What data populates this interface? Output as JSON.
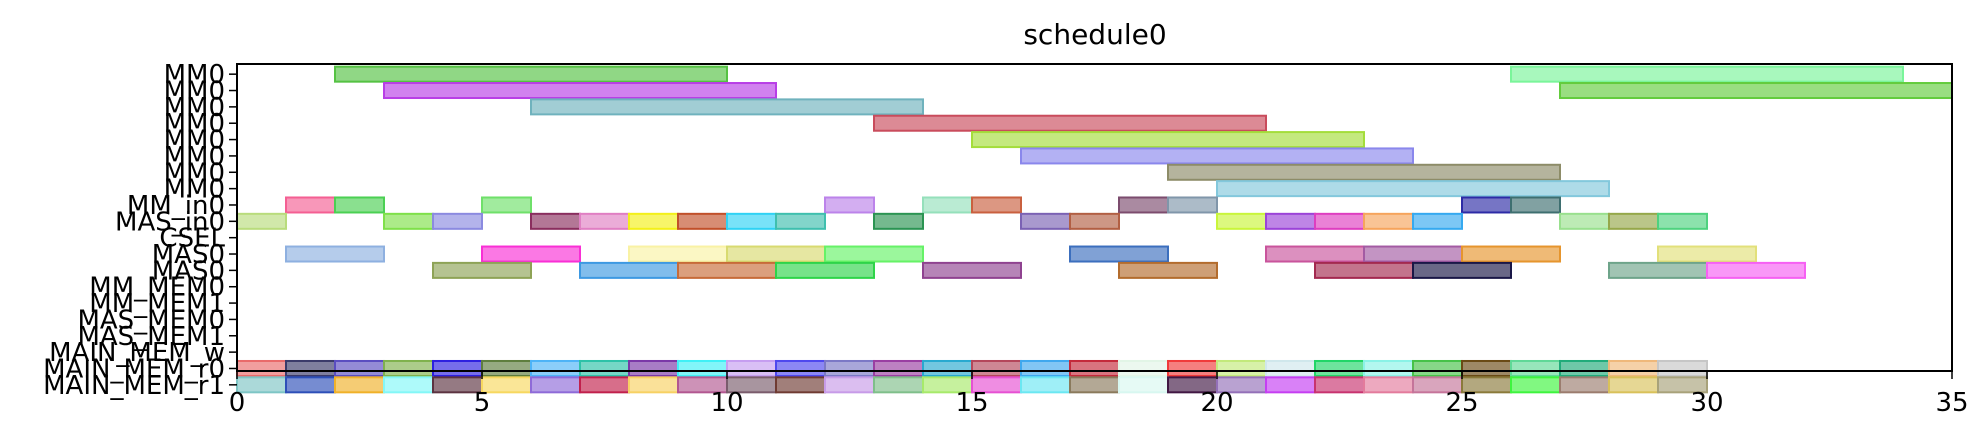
{
  "chart_data": {
    "type": "gantt",
    "title": "schedule0",
    "xlabel": "",
    "ylabel": "",
    "xlim": [
      0,
      35
    ],
    "xticks": [
      0,
      5,
      10,
      15,
      20,
      25,
      30,
      35
    ],
    "grid": false,
    "rows": [
      "MM0",
      "MM0",
      "MM0",
      "MM0",
      "MM0",
      "MM0",
      "MM0",
      "MM0",
      "MM_in0",
      "MAS_in0",
      "CSEL",
      "MAS0",
      "MAS0",
      "MM_MEM0",
      "MM_MEM1",
      "MAS_MEM0",
      "MAS_MEM1",
      "MAIN_MEM_w",
      "MAIN_MEM_r0",
      "MAIN_MEM_r1"
    ],
    "bars": [
      {
        "row": 0,
        "start": 2,
        "end": 10,
        "color": "#55c243"
      },
      {
        "row": 0,
        "start": 26,
        "end": 34,
        "color": "#7af59a"
      },
      {
        "row": 1,
        "start": 3,
        "end": 11,
        "color": "#b83ee6"
      },
      {
        "row": 1,
        "start": 27,
        "end": 35,
        "color": "#63cc3d"
      },
      {
        "row": 2,
        "start": 6,
        "end": 14,
        "color": "#6fb2bd"
      },
      {
        "row": 3,
        "start": 13,
        "end": 21,
        "color": "#c94c5c"
      },
      {
        "row": 4,
        "start": 15,
        "end": 23,
        "color": "#a4dd3b"
      },
      {
        "row": 5,
        "start": 16,
        "end": 24,
        "color": "#8a87ec"
      },
      {
        "row": 6,
        "start": 19,
        "end": 27,
        "color": "#8d8c68"
      },
      {
        "row": 7,
        "start": 20,
        "end": 28,
        "color": "#83c8dc"
      },
      {
        "row": 8,
        "start": 1,
        "end": 2,
        "color": "#f45f93"
      },
      {
        "row": 8,
        "start": 2,
        "end": 3,
        "color": "#4bd053"
      },
      {
        "row": 8,
        "start": 5,
        "end": 6,
        "color": "#6fe06a"
      },
      {
        "row": 8,
        "start": 12,
        "end": 13,
        "color": "#bc83ea"
      },
      {
        "row": 8,
        "start": 14,
        "end": 15,
        "color": "#95e0bb"
      },
      {
        "row": 8,
        "start": 15,
        "end": 16,
        "color": "#c9603f"
      },
      {
        "row": 8,
        "start": 18,
        "end": 19,
        "color": "#7c4c6e"
      },
      {
        "row": 8,
        "start": 19,
        "end": 20,
        "color": "#8096aa"
      },
      {
        "row": 8,
        "start": 25,
        "end": 26,
        "color": "#2d2ba6"
      },
      {
        "row": 8,
        "start": 26,
        "end": 27,
        "color": "#3e6f70"
      },
      {
        "row": 9,
        "start": 0,
        "end": 1,
        "color": "#b9dc7c"
      },
      {
        "row": 9,
        "start": 3,
        "end": 4,
        "color": "#7fe04a"
      },
      {
        "row": 9,
        "start": 4,
        "end": 5,
        "color": "#8b8ae0"
      },
      {
        "row": 9,
        "start": 6,
        "end": 7,
        "color": "#8a2e5e"
      },
      {
        "row": 9,
        "start": 7,
        "end": 8,
        "color": "#e07fc3"
      },
      {
        "row": 9,
        "start": 8,
        "end": 9,
        "color": "#f3f019"
      },
      {
        "row": 9,
        "start": 9,
        "end": 10,
        "color": "#c1502a"
      },
      {
        "row": 9,
        "start": 10,
        "end": 11,
        "color": "#2fd2f4"
      },
      {
        "row": 9,
        "start": 11,
        "end": 12,
        "color": "#3fbfae"
      },
      {
        "row": 9,
        "start": 13,
        "end": 14,
        "color": "#2b9452"
      },
      {
        "row": 9,
        "start": 16,
        "end": 17,
        "color": "#7b62b4"
      },
      {
        "row": 9,
        "start": 17,
        "end": 18,
        "color": "#b25f43"
      },
      {
        "row": 9,
        "start": 20,
        "end": 21,
        "color": "#c9f53a"
      },
      {
        "row": 9,
        "start": 21,
        "end": 22,
        "color": "#9b43d8"
      },
      {
        "row": 9,
        "start": 22,
        "end": 23,
        "color": "#de3ec0"
      },
      {
        "row": 9,
        "start": 23,
        "end": 24,
        "color": "#f6a45c"
      },
      {
        "row": 9,
        "start": 24,
        "end": 25,
        "color": "#35a9f0"
      },
      {
        "row": 9,
        "start": 27,
        "end": 28,
        "color": "#99e08e"
      },
      {
        "row": 9,
        "start": 28,
        "end": 29,
        "color": "#95a84a"
      },
      {
        "row": 9,
        "start": 29,
        "end": 30,
        "color": "#4fd27f"
      },
      {
        "row": 11,
        "start": 1,
        "end": 3,
        "color": "#8eb0e0"
      },
      {
        "row": 11,
        "start": 5,
        "end": 7,
        "color": "#f92fd5"
      },
      {
        "row": 11,
        "start": 8,
        "end": 10,
        "color": "#f9f2a4"
      },
      {
        "row": 11,
        "start": 10,
        "end": 12,
        "color": "#d8da70"
      },
      {
        "row": 11,
        "start": 12,
        "end": 14,
        "color": "#66f267"
      },
      {
        "row": 11,
        "start": 17,
        "end": 19,
        "color": "#3c6fbe"
      },
      {
        "row": 11,
        "start": 21,
        "end": 23,
        "color": "#c9549c"
      },
      {
        "row": 11,
        "start": 23,
        "end": 25,
        "color": "#a35ba3"
      },
      {
        "row": 11,
        "start": 25,
        "end": 27,
        "color": "#e6952d"
      },
      {
        "row": 11,
        "start": 29,
        "end": 31,
        "color": "#e2e07a"
      },
      {
        "row": 12,
        "start": 4,
        "end": 6,
        "color": "#8ea356"
      },
      {
        "row": 12,
        "start": 7,
        "end": 9,
        "color": "#3d99e2"
      },
      {
        "row": 12,
        "start": 9,
        "end": 11,
        "color": "#c76b38"
      },
      {
        "row": 12,
        "start": 11,
        "end": 13,
        "color": "#2ed449"
      },
      {
        "row": 12,
        "start": 14,
        "end": 16,
        "color": "#8f4290"
      },
      {
        "row": 12,
        "start": 18,
        "end": 20,
        "color": "#b36c2d"
      },
      {
        "row": 12,
        "start": 22,
        "end": 24,
        "color": "#a3294f"
      },
      {
        "row": 12,
        "start": 24,
        "end": 26,
        "color": "#1a1747"
      },
      {
        "row": 12,
        "start": 28,
        "end": 30,
        "color": "#6ea48a"
      },
      {
        "row": 12,
        "start": 30,
        "end": 32,
        "color": "#f660f3"
      },
      {
        "row": 18,
        "start": 0,
        "end": 1,
        "color": "#e96a6a"
      },
      {
        "row": 18,
        "start": 1,
        "end": 2,
        "color": "#3a3a6a"
      },
      {
        "row": 18,
        "start": 2,
        "end": 3,
        "color": "#5a4dc0"
      },
      {
        "row": 18,
        "start": 3,
        "end": 4,
        "color": "#7fb14c"
      },
      {
        "row": 18,
        "start": 4,
        "end": 5,
        "color": "#2c1fe0"
      },
      {
        "row": 18,
        "start": 5,
        "end": 6,
        "color": "#5e7d3d"
      },
      {
        "row": 18,
        "start": 6,
        "end": 7,
        "color": "#4db3f7"
      },
      {
        "row": 18,
        "start": 7,
        "end": 8,
        "color": "#2dc2a8"
      },
      {
        "row": 18,
        "start": 8,
        "end": 9,
        "color": "#7a38a8"
      },
      {
        "row": 18,
        "start": 9,
        "end": 10,
        "color": "#3ff0f6"
      },
      {
        "row": 18,
        "start": 10,
        "end": 11,
        "color": "#c59df0"
      },
      {
        "row": 18,
        "start": 11,
        "end": 12,
        "color": "#4e47ee"
      },
      {
        "row": 18,
        "start": 12,
        "end": 13,
        "color": "#7b78c6"
      },
      {
        "row": 18,
        "start": 13,
        "end": 14,
        "color": "#9a3ea2"
      },
      {
        "row": 18,
        "start": 14,
        "end": 15,
        "color": "#27a9d0"
      },
      {
        "row": 18,
        "start": 15,
        "end": 16,
        "color": "#b4465a"
      },
      {
        "row": 18,
        "start": 16,
        "end": 17,
        "color": "#3fa8ee"
      },
      {
        "row": 18,
        "start": 17,
        "end": 18,
        "color": "#c42a3b"
      },
      {
        "row": 18,
        "start": 18,
        "end": 19,
        "color": "#e2f5e6"
      },
      {
        "row": 18,
        "start": 19,
        "end": 20,
        "color": "#f03a3a"
      },
      {
        "row": 18,
        "start": 20,
        "end": 21,
        "color": "#c2e97a"
      },
      {
        "row": 18,
        "start": 21,
        "end": 22,
        "color": "#d0e7ec"
      },
      {
        "row": 18,
        "start": 22,
        "end": 23,
        "color": "#21d668"
      },
      {
        "row": 18,
        "start": 23,
        "end": 24,
        "color": "#8af2e6"
      },
      {
        "row": 18,
        "start": 24,
        "end": 25,
        "color": "#46c248"
      },
      {
        "row": 18,
        "start": 25,
        "end": 26,
        "color": "#6a4a14"
      },
      {
        "row": 18,
        "start": 26,
        "end": 27,
        "color": "#5fd897"
      },
      {
        "row": 18,
        "start": 27,
        "end": 28,
        "color": "#20ab7a"
      },
      {
        "row": 18,
        "start": 28,
        "end": 29,
        "color": "#efb87a"
      },
      {
        "row": 18,
        "start": 29,
        "end": 30,
        "color": "#c6c6c6"
      },
      {
        "row": 19,
        "start": 0,
        "end": 1,
        "color": "#7ec5c5"
      },
      {
        "row": 19,
        "start": 1,
        "end": 2,
        "color": "#2d4fb8"
      },
      {
        "row": 19,
        "start": 2,
        "end": 3,
        "color": "#f0b129"
      },
      {
        "row": 19,
        "start": 3,
        "end": 4,
        "color": "#83f7f7"
      },
      {
        "row": 19,
        "start": 4,
        "end": 5,
        "color": "#5c3341"
      },
      {
        "row": 19,
        "start": 5,
        "end": 6,
        "color": "#f7d85f"
      },
      {
        "row": 19,
        "start": 6,
        "end": 7,
        "color": "#8e6ad8"
      },
      {
        "row": 19,
        "start": 7,
        "end": 8,
        "color": "#c1204c"
      },
      {
        "row": 19,
        "start": 8,
        "end": 9,
        "color": "#f7d163"
      },
      {
        "row": 19,
        "start": 9,
        "end": 10,
        "color": "#b25791"
      },
      {
        "row": 19,
        "start": 10,
        "end": 11,
        "color": "#7a5c6c"
      },
      {
        "row": 19,
        "start": 11,
        "end": 12,
        "color": "#6f3b32"
      },
      {
        "row": 19,
        "start": 12,
        "end": 13,
        "color": "#c79be8"
      },
      {
        "row": 19,
        "start": 13,
        "end": 14,
        "color": "#7fbf8a"
      },
      {
        "row": 19,
        "start": 14,
        "end": 15,
        "color": "#a7ea6a"
      },
      {
        "row": 19,
        "start": 15,
        "end": 16,
        "color": "#e650d3"
      },
      {
        "row": 19,
        "start": 16,
        "end": 17,
        "color": "#6be7f2"
      },
      {
        "row": 19,
        "start": 17,
        "end": 18,
        "color": "#8a7a5c"
      },
      {
        "row": 19,
        "start": 18,
        "end": 19,
        "color": "#d8f7f0"
      },
      {
        "row": 19,
        "start": 19,
        "end": 20,
        "color": "#411743"
      },
      {
        "row": 19,
        "start": 20,
        "end": 21,
        "color": "#9370b8"
      },
      {
        "row": 19,
        "start": 21,
        "end": 22,
        "color": "#c53ef2"
      },
      {
        "row": 19,
        "start": 22,
        "end": 23,
        "color": "#c8336f"
      },
      {
        "row": 19,
        "start": 23,
        "end": 24,
        "color": "#e37b9c"
      },
      {
        "row": 19,
        "start": 24,
        "end": 25,
        "color": "#c5749a"
      },
      {
        "row": 19,
        "start": 25,
        "end": 26,
        "color": "#8a7a3a"
      },
      {
        "row": 19,
        "start": 26,
        "end": 27,
        "color": "#3ef43e"
      },
      {
        "row": 19,
        "start": 27,
        "end": 28,
        "color": "#9b7c6e"
      },
      {
        "row": 19,
        "start": 28,
        "end": 29,
        "color": "#d9c15a"
      },
      {
        "row": 19,
        "start": 29,
        "end": 30,
        "color": "#a8a27a"
      }
    ]
  }
}
